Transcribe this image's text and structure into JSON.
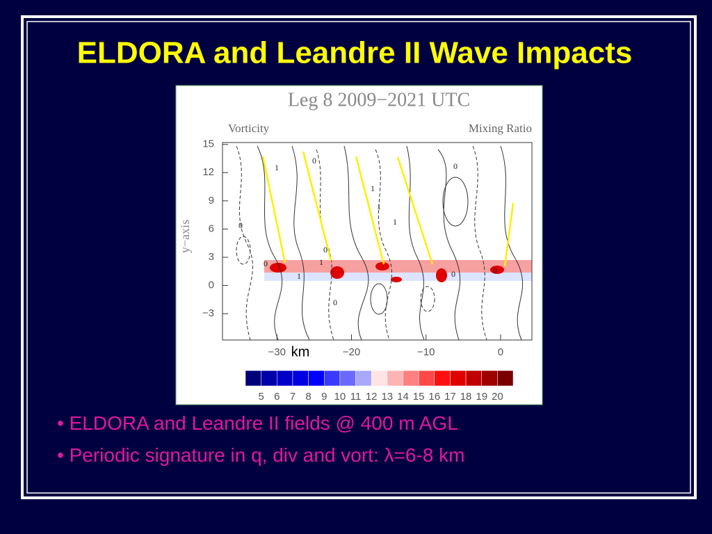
{
  "slide": {
    "title": "ELDORA and Leandre II Wave Impacts",
    "bullets": [
      "ELDORA and Leandre II fields @ 400 m AGL",
      "Periodic signature in q, div and vort: λ=6-8 km"
    ]
  },
  "figure": {
    "title": "Leg 8  2009−2021 UTC",
    "left_label": "Vorticity",
    "right_label": "Mixing Ratio",
    "y_axis_label": "y−axis",
    "x_unit": "km",
    "xlim": [
      -37.3,
      4.2
    ],
    "ylim": [
      -5.8,
      15.2
    ],
    "yticks": [
      15,
      12,
      9,
      6,
      3,
      0,
      {
        "value": -3,
        "label": "−3"
      }
    ],
    "xticks": [
      {
        "value": -30,
        "label": "−30"
      },
      {
        "value": -20,
        "label": "−20"
      },
      {
        "value": -10,
        "label": "−10"
      },
      0
    ],
    "contour_labels": [
      "1",
      "0",
      "0",
      "1",
      "1",
      "0",
      "0",
      "0",
      "1",
      "1",
      "0",
      "0",
      "1",
      "0"
    ],
    "colorbar": {
      "labels": [
        5,
        6,
        7,
        8,
        9,
        10,
        11,
        12,
        13,
        14,
        15,
        16,
        17,
        18,
        19,
        20
      ],
      "colors": [
        "#00007a",
        "#0000a8",
        "#0000c8",
        "#0000e0",
        "#0000ff",
        "#3a3aff",
        "#6a6aff",
        "#a8a8ff",
        "#ffe4e4",
        "#ffb4b4",
        "#ff8080",
        "#ff4848",
        "#ff1010",
        "#e00000",
        "#c00000",
        "#a00000",
        "#7a0000"
      ]
    }
  }
}
